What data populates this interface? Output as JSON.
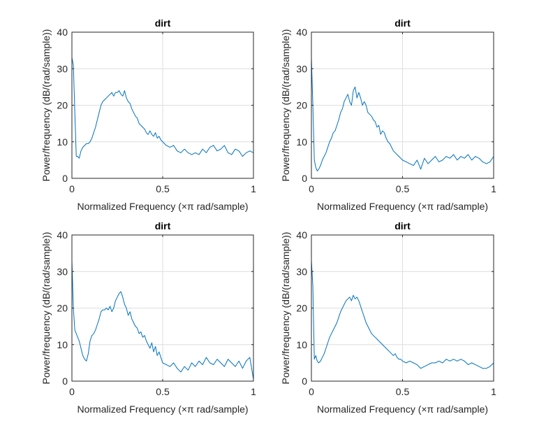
{
  "figure": {
    "panel_count": 4
  },
  "chart_data": [
    {
      "type": "line",
      "title": "dirt",
      "xlabel": "Normalized Frequency  (×π rad/sample)",
      "ylabel": "Power/frequency (dB/(rad/sample))",
      "xlim": [
        0,
        1
      ],
      "ylim": [
        0,
        40
      ],
      "xticks": [
        "0",
        "0.5",
        "1"
      ],
      "yticks": [
        "0",
        "10",
        "20",
        "30",
        "40"
      ],
      "grid": true,
      "series": [
        {
          "color": "#0072bd",
          "x": [
            0,
            0.008,
            0.016,
            0.024,
            0.032,
            0.04,
            0.05,
            0.06,
            0.07,
            0.08,
            0.09,
            0.1,
            0.11,
            0.12,
            0.13,
            0.14,
            0.15,
            0.16,
            0.17,
            0.18,
            0.19,
            0.2,
            0.21,
            0.22,
            0.23,
            0.24,
            0.25,
            0.26,
            0.27,
            0.28,
            0.29,
            0.3,
            0.31,
            0.32,
            0.33,
            0.34,
            0.35,
            0.36,
            0.37,
            0.38,
            0.39,
            0.4,
            0.41,
            0.42,
            0.43,
            0.44,
            0.45,
            0.46,
            0.47,
            0.48,
            0.49,
            0.5,
            0.52,
            0.54,
            0.56,
            0.58,
            0.6,
            0.62,
            0.64,
            0.66,
            0.68,
            0.7,
            0.72,
            0.74,
            0.76,
            0.78,
            0.8,
            0.82,
            0.84,
            0.86,
            0.88,
            0.9,
            0.92,
            0.94,
            0.96,
            0.98,
            1.0
          ],
          "y": [
            33,
            31,
            18,
            6,
            6,
            5.5,
            7.5,
            8.5,
            9,
            9.5,
            9.5,
            10,
            11,
            12.5,
            14,
            16,
            18,
            20,
            21,
            21.5,
            22,
            22.5,
            23,
            23.5,
            22.5,
            23.5,
            23.5,
            24,
            23,
            22.5,
            24,
            22,
            21,
            20.5,
            19,
            18,
            17,
            16.5,
            15,
            14.5,
            14,
            13.5,
            12.5,
            12,
            13,
            12,
            11.5,
            12.5,
            11,
            11.5,
            10.5,
            10,
            9,
            8.5,
            9,
            7.5,
            7,
            8,
            7,
            6.5,
            7,
            6.5,
            8,
            7,
            8.5,
            9,
            7.5,
            8,
            9,
            7,
            6.5,
            8,
            7.5,
            6,
            7,
            7.5,
            7
          ]
        }
      ]
    },
    {
      "type": "line",
      "title": "dirt",
      "xlabel": "Normalized Frequency  (×π rad/sample)",
      "ylabel": "Power/frequency (dB/(rad/sample))",
      "xlim": [
        0,
        1
      ],
      "ylim": [
        0,
        40
      ],
      "xticks": [
        "0",
        "0.5",
        "1"
      ],
      "yticks": [
        "0",
        "10",
        "20",
        "30",
        "40"
      ],
      "grid": true,
      "series": [
        {
          "color": "#0072bd",
          "x": [
            0,
            0.008,
            0.016,
            0.024,
            0.032,
            0.04,
            0.05,
            0.06,
            0.07,
            0.08,
            0.09,
            0.1,
            0.11,
            0.12,
            0.13,
            0.14,
            0.15,
            0.16,
            0.17,
            0.18,
            0.19,
            0.2,
            0.21,
            0.22,
            0.23,
            0.24,
            0.25,
            0.26,
            0.27,
            0.28,
            0.29,
            0.3,
            0.31,
            0.32,
            0.33,
            0.34,
            0.35,
            0.36,
            0.37,
            0.38,
            0.39,
            0.4,
            0.41,
            0.42,
            0.43,
            0.44,
            0.45,
            0.46,
            0.47,
            0.48,
            0.49,
            0.5,
            0.52,
            0.54,
            0.56,
            0.58,
            0.6,
            0.62,
            0.64,
            0.66,
            0.68,
            0.7,
            0.72,
            0.74,
            0.76,
            0.78,
            0.8,
            0.82,
            0.84,
            0.86,
            0.88,
            0.9,
            0.92,
            0.94,
            0.96,
            0.98,
            1.0
          ],
          "y": [
            33,
            20,
            5,
            3,
            2,
            2.5,
            3.5,
            5,
            6,
            7,
            8.5,
            10,
            11,
            12.5,
            13,
            14.5,
            16,
            18,
            19,
            21,
            22,
            23,
            21,
            20,
            24,
            25,
            22,
            23.5,
            22,
            20,
            21,
            20,
            18,
            17.5,
            17,
            16,
            15.5,
            14,
            14.5,
            12,
            13,
            12.5,
            11,
            10,
            9.5,
            8.5,
            7.5,
            7,
            6.5,
            6,
            5.5,
            5,
            4.5,
            4,
            3.5,
            5,
            2.5,
            5.5,
            4,
            5,
            6,
            4.5,
            5,
            6,
            5.5,
            6.5,
            5,
            6,
            5.5,
            6.5,
            5,
            6,
            5.5,
            4.5,
            4,
            4.5,
            6
          ]
        }
      ]
    },
    {
      "type": "line",
      "title": "dirt",
      "xlabel": "Normalized Frequency  (×π rad/sample)",
      "ylabel": "Power/frequency (dB/(rad/sample))",
      "xlim": [
        0,
        1
      ],
      "ylim": [
        0,
        40
      ],
      "xticks": [
        "0",
        "0.5",
        "1"
      ],
      "yticks": [
        "0",
        "10",
        "20",
        "30",
        "40"
      ],
      "grid": true,
      "series": [
        {
          "color": "#0072bd",
          "x": [
            0,
            0.008,
            0.016,
            0.024,
            0.032,
            0.04,
            0.05,
            0.06,
            0.07,
            0.08,
            0.09,
            0.1,
            0.11,
            0.12,
            0.13,
            0.14,
            0.15,
            0.16,
            0.17,
            0.18,
            0.19,
            0.2,
            0.21,
            0.22,
            0.23,
            0.24,
            0.25,
            0.26,
            0.27,
            0.28,
            0.29,
            0.3,
            0.31,
            0.32,
            0.33,
            0.34,
            0.35,
            0.36,
            0.37,
            0.38,
            0.39,
            0.4,
            0.41,
            0.42,
            0.43,
            0.44,
            0.45,
            0.46,
            0.47,
            0.48,
            0.49,
            0.5,
            0.52,
            0.54,
            0.56,
            0.58,
            0.6,
            0.62,
            0.64,
            0.66,
            0.68,
            0.7,
            0.72,
            0.74,
            0.76,
            0.78,
            0.8,
            0.82,
            0.84,
            0.86,
            0.88,
            0.9,
            0.92,
            0.94,
            0.96,
            0.98,
            1.0
          ],
          "y": [
            33,
            20,
            14,
            13,
            12,
            11,
            9,
            7,
            6,
            5.5,
            7.5,
            11,
            12.5,
            13,
            14,
            15.5,
            17,
            19,
            19.5,
            19.5,
            20,
            19.5,
            20.5,
            19,
            20,
            22,
            23,
            24,
            24.5,
            23,
            21,
            20,
            18,
            19,
            17,
            16,
            15,
            14.5,
            13,
            13.5,
            12,
            12.5,
            11,
            10,
            9,
            10.5,
            8,
            9.5,
            7,
            8,
            6.5,
            5,
            4.5,
            4,
            5,
            3.5,
            2.5,
            4,
            3,
            5,
            4,
            5.5,
            4.5,
            6.5,
            5,
            4.5,
            6,
            5,
            4,
            6,
            5,
            4,
            5.5,
            3.5,
            5.5,
            6.5,
            0.5
          ]
        }
      ]
    },
    {
      "type": "line",
      "title": "dirt",
      "xlabel": "Normalized Frequency  (×π rad/sample)",
      "ylabel": "Power/frequency (dB/(rad/sample))",
      "xlim": [
        0,
        1
      ],
      "ylim": [
        0,
        40
      ],
      "xticks": [
        "0",
        "0.5",
        "1"
      ],
      "yticks": [
        "0",
        "10",
        "20",
        "30",
        "40"
      ],
      "grid": true,
      "series": [
        {
          "color": "#0072bd",
          "x": [
            0,
            0.008,
            0.016,
            0.024,
            0.032,
            0.04,
            0.05,
            0.06,
            0.07,
            0.08,
            0.09,
            0.1,
            0.11,
            0.12,
            0.13,
            0.14,
            0.15,
            0.16,
            0.17,
            0.18,
            0.19,
            0.2,
            0.21,
            0.22,
            0.23,
            0.24,
            0.25,
            0.26,
            0.27,
            0.28,
            0.29,
            0.3,
            0.31,
            0.32,
            0.33,
            0.34,
            0.35,
            0.36,
            0.37,
            0.38,
            0.39,
            0.4,
            0.41,
            0.42,
            0.43,
            0.44,
            0.45,
            0.46,
            0.47,
            0.48,
            0.49,
            0.5,
            0.52,
            0.54,
            0.56,
            0.58,
            0.6,
            0.62,
            0.64,
            0.66,
            0.68,
            0.7,
            0.72,
            0.74,
            0.76,
            0.78,
            0.8,
            0.82,
            0.84,
            0.86,
            0.88,
            0.9,
            0.92,
            0.94,
            0.96,
            0.98,
            1.0
          ],
          "y": [
            33,
            26,
            6,
            7,
            5.5,
            5,
            5.5,
            6.5,
            7.5,
            9,
            10.5,
            12,
            13,
            14,
            15,
            16,
            17.5,
            19,
            20,
            21,
            22,
            22.5,
            23,
            22,
            23.5,
            22.5,
            23,
            22,
            20.5,
            19,
            17.5,
            16,
            15,
            14,
            13,
            12.5,
            12,
            11.5,
            11,
            10.5,
            10,
            9.5,
            9,
            8.5,
            8,
            7.5,
            7,
            7.5,
            6.5,
            6,
            6,
            5.5,
            5,
            5.5,
            5,
            4.5,
            3.5,
            4,
            4.5,
            5,
            5,
            5.5,
            5,
            6,
            5.5,
            6,
            5.5,
            6,
            5.5,
            4.5,
            5,
            4.5,
            4,
            3.5,
            3.5,
            4,
            5
          ]
        }
      ]
    }
  ]
}
